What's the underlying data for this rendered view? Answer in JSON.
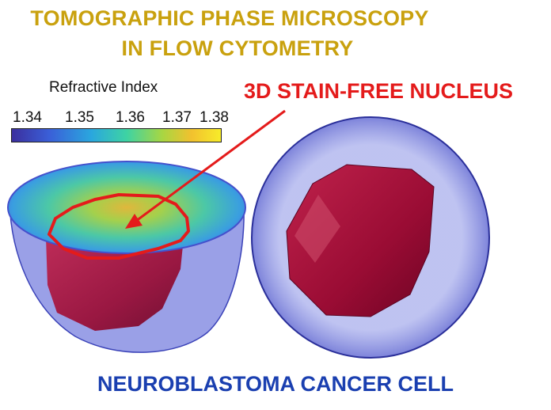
{
  "title_line1": "TOMOGRAPHIC PHASE MICROSCOPY",
  "title_line2": "IN FLOW CYTOMETRY",
  "colorbar": {
    "label": "Refractive Index",
    "ticks": [
      "1.34",
      "1.35",
      "1.36",
      "1.37",
      "1.38"
    ]
  },
  "nucleus_label": "3D STAIN-FREE NUCLEUS",
  "footer": "NEUROBLASTOMA CANCER CELL",
  "colors": {
    "title": "#c9a10e",
    "nucleus_label": "#e41b1b",
    "footer": "#1a3fb0",
    "membrane": "#5b64d8",
    "nucleus": "#b01040"
  }
}
